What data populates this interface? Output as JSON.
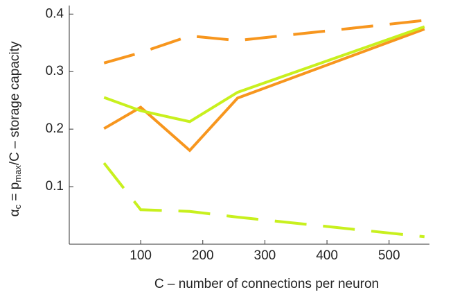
{
  "chart_data": {
    "type": "line",
    "xlabel": "C – number of connections per neuron",
    "ylabel_parts": [
      "α",
      "c",
      " =  p",
      "max",
      "/C  –  storage capacity"
    ],
    "x": [
      41,
      100,
      179,
      256,
      557
    ],
    "series": [
      {
        "color": "#f7961e",
        "dashed": false,
        "values": [
          0.201,
          0.238,
          0.163,
          0.254,
          0.374
        ]
      },
      {
        "color": "#c8f01e",
        "dashed": false,
        "values": [
          0.255,
          0.232,
          0.213,
          0.264,
          0.378
        ]
      },
      {
        "color": "#f7961e",
        "dashed": true,
        "values": [
          0.315,
          0.333,
          0.362,
          0.354,
          0.389
        ]
      },
      {
        "color": "#c8f01e",
        "dashed": true,
        "values": [
          0.141,
          0.06,
          0.057,
          0.047,
          0.013
        ]
      }
    ],
    "xlim": [
      -15,
      565
    ],
    "ylim": [
      0,
      0.41
    ],
    "xticks": [
      100,
      200,
      300,
      400,
      500
    ],
    "yticks": [
      0.1,
      0.2,
      0.3,
      0.4
    ]
  }
}
